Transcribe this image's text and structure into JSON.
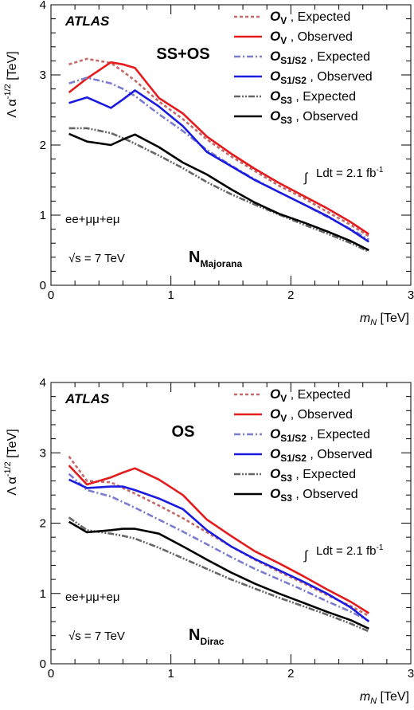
{
  "figure": {
    "x_axis_label_italic": "m",
    "x_axis_label_sub": "N",
    "x_axis_label_unit": " [TeV]",
    "y_axis_label": "Λ α",
    "y_axis_label_sup": "-1/2",
    "y_axis_label_unit": " [TeV]",
    "atlas_label": "ATLAS",
    "channel_label": "ee+μμ+eμ",
    "sqrt_s_symbol": "√s",
    "energy_label": " = 7 TeV",
    "luminosity_label": "Ldt = 2.1 fb",
    "luminosity_sup": "-1",
    "integral_symbol": "∫",
    "colors": {
      "ov_expected": "#c46a6a",
      "ov_observed": "#e41a1c",
      "os12_expected": "#7b7bd0",
      "os12_observed": "#1a1ae0",
      "os3_expected": "#666666",
      "os3_observed": "#000000"
    }
  },
  "legend": [
    {
      "op": "O",
      "sub": "V",
      "text": " , Expected",
      "key": "ov_expected",
      "dash": "4,3"
    },
    {
      "op": "O",
      "sub": "V",
      "text": " , Observed",
      "key": "ov_observed",
      "dash": ""
    },
    {
      "op": "O",
      "sub": "S1/S2",
      "text": " , Expected",
      "key": "os12_expected",
      "dash": "8,3,2,3"
    },
    {
      "op": "O",
      "sub": "S1/S2",
      "text": " , Observed",
      "key": "os12_observed",
      "dash": ""
    },
    {
      "op": "O",
      "sub": "S3",
      "text": " , Expected",
      "key": "os3_expected",
      "dash": "8,2,2,2,2,2"
    },
    {
      "op": "O",
      "sub": "S3",
      "text": " , Observed",
      "key": "os3_observed",
      "dash": ""
    }
  ],
  "chart_data": [
    {
      "type": "line",
      "panel_label": "SS+OS",
      "neutrino_label": "N",
      "neutrino_sub": "Majorana",
      "xlim": [
        0,
        3
      ],
      "ylim": [
        0,
        4
      ],
      "xticks": [
        0,
        1,
        2,
        3
      ],
      "yticks": [
        0,
        1,
        2,
        3,
        4
      ],
      "x": [
        0.15,
        0.3,
        0.5,
        0.6,
        0.7,
        0.9,
        1.1,
        1.3,
        1.5,
        1.7,
        1.9,
        2.1,
        2.3,
        2.5,
        2.65
      ],
      "series": [
        {
          "key": "ov_expected",
          "values": [
            3.15,
            3.23,
            3.17,
            3.05,
            2.92,
            2.62,
            2.37,
            2.08,
            1.84,
            1.63,
            1.42,
            1.25,
            1.05,
            0.86,
            0.7
          ]
        },
        {
          "key": "ov_observed",
          "values": [
            2.75,
            2.95,
            3.18,
            3.15,
            3.1,
            2.67,
            2.45,
            2.12,
            1.88,
            1.66,
            1.46,
            1.28,
            1.1,
            0.9,
            0.73
          ]
        },
        {
          "key": "os12_expected",
          "values": [
            2.88,
            2.96,
            2.88,
            2.8,
            2.7,
            2.44,
            2.2,
            1.93,
            1.71,
            1.51,
            1.33,
            1.16,
            0.98,
            0.8,
            0.65
          ]
        },
        {
          "key": "os12_observed",
          "values": [
            2.6,
            2.68,
            2.53,
            2.65,
            2.78,
            2.55,
            2.27,
            1.9,
            1.7,
            1.5,
            1.33,
            1.16,
            0.99,
            0.79,
            0.62
          ]
        },
        {
          "key": "os3_expected",
          "values": [
            2.24,
            2.24,
            2.17,
            2.1,
            2.02,
            1.85,
            1.67,
            1.47,
            1.3,
            1.15,
            1.01,
            0.87,
            0.74,
            0.6,
            0.48
          ]
        },
        {
          "key": "os3_observed",
          "values": [
            2.16,
            2.05,
            2.0,
            2.08,
            2.15,
            1.97,
            1.75,
            1.58,
            1.37,
            1.18,
            1.02,
            0.9,
            0.77,
            0.63,
            0.5
          ]
        }
      ]
    },
    {
      "type": "line",
      "panel_label": "OS",
      "neutrino_label": "N",
      "neutrino_sub": "Dirac",
      "xlim": [
        0,
        3
      ],
      "ylim": [
        0,
        4
      ],
      "xticks": [
        0,
        1,
        2,
        3
      ],
      "yticks": [
        0,
        1,
        2,
        3,
        4
      ],
      "x": [
        0.15,
        0.3,
        0.5,
        0.6,
        0.7,
        0.9,
        1.1,
        1.3,
        1.5,
        1.7,
        1.9,
        2.1,
        2.3,
        2.5,
        2.65
      ],
      "series": [
        {
          "key": "ov_expected",
          "values": [
            2.95,
            2.6,
            2.58,
            2.5,
            2.42,
            2.25,
            2.07,
            1.87,
            1.67,
            1.48,
            1.31,
            1.15,
            0.98,
            0.82,
            0.68
          ]
        },
        {
          "key": "ov_observed",
          "values": [
            2.82,
            2.55,
            2.65,
            2.72,
            2.78,
            2.62,
            2.4,
            2.05,
            1.82,
            1.6,
            1.43,
            1.25,
            1.06,
            0.88,
            0.72
          ]
        },
        {
          "key": "os12_expected",
          "values": [
            2.7,
            2.47,
            2.38,
            2.3,
            2.22,
            2.05,
            1.88,
            1.7,
            1.52,
            1.35,
            1.2,
            1.05,
            0.89,
            0.74,
            0.61
          ]
        },
        {
          "key": "os12_observed",
          "values": [
            2.62,
            2.5,
            2.52,
            2.52,
            2.47,
            2.35,
            2.2,
            1.9,
            1.67,
            1.49,
            1.33,
            1.17,
            1.0,
            0.8,
            0.6
          ]
        },
        {
          "key": "os3_expected",
          "values": [
            2.08,
            1.9,
            1.85,
            1.82,
            1.78,
            1.65,
            1.5,
            1.35,
            1.2,
            1.07,
            0.94,
            0.82,
            0.7,
            0.57,
            0.46
          ]
        },
        {
          "key": "os3_observed",
          "values": [
            2.02,
            1.87,
            1.9,
            1.92,
            1.92,
            1.85,
            1.67,
            1.48,
            1.3,
            1.14,
            1.0,
            0.87,
            0.74,
            0.62,
            0.5
          ]
        }
      ]
    }
  ]
}
